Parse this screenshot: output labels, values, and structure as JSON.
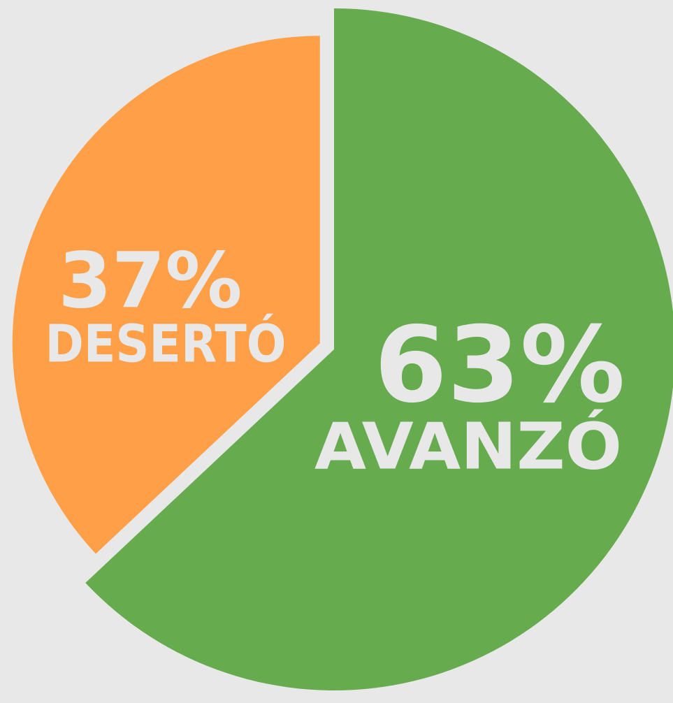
{
  "chart_data": {
    "type": "pie",
    "categories": [
      "AVANZÓ",
      "DESERTÓ"
    ],
    "values": [
      63,
      37
    ],
    "value_labels": [
      "63%",
      "37%"
    ],
    "colors": [
      "#66ab4e",
      "#ffa048"
    ]
  }
}
